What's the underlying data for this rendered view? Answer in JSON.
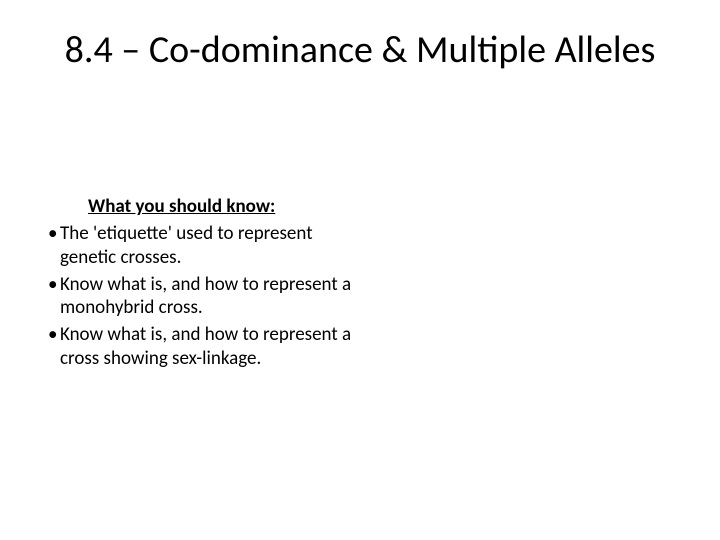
{
  "slide": {
    "title": "8.4 – Co-dominance & Multiple Alleles",
    "subheading": "What you should know:",
    "bullets": [
      "The 'etiquette' used to represent genetic crosses.",
      "Know what is, and how to represent a monohybrid cross.",
      "Know what is, and how to represent a cross showing sex-linkage."
    ]
  },
  "styling": {
    "background_color": "#ffffff",
    "text_color": "#000000",
    "title_fontsize": 38,
    "title_fontweight": 400,
    "subheading_fontsize": 19,
    "subheading_fontweight": "bold",
    "subheading_underline": true,
    "body_fontsize": 19,
    "font_family": "Calibri",
    "slide_width": 720,
    "slide_height": 540
  }
}
